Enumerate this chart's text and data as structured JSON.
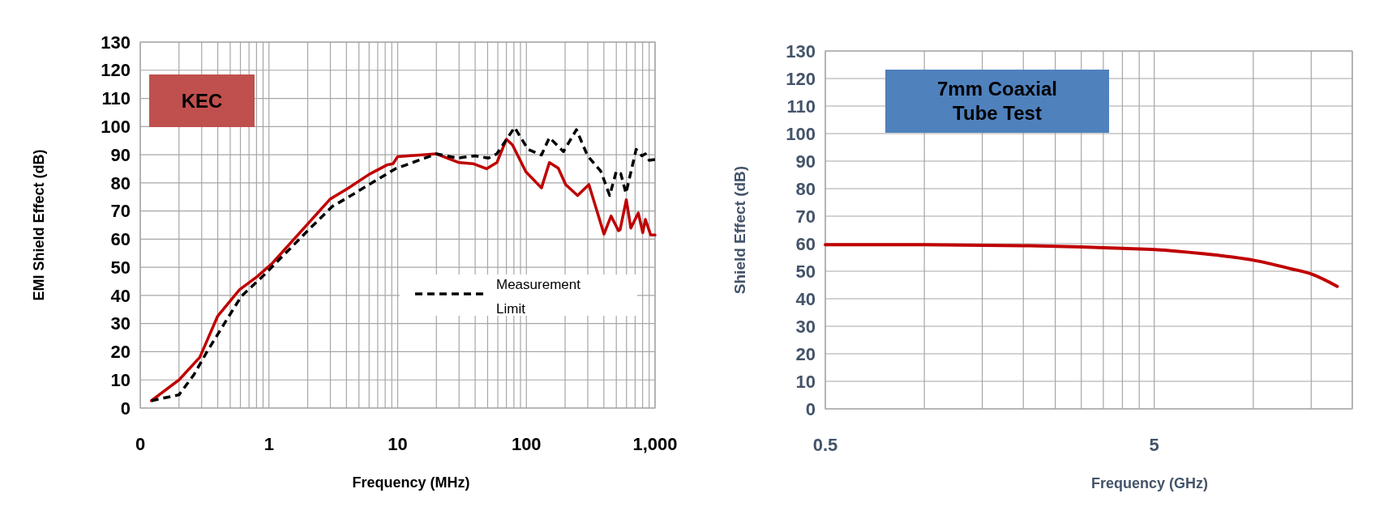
{
  "chart_data": [
    {
      "type": "line",
      "xlabel": "Frequency (MHz)",
      "ylabel": "EMI Shield Effect (dB)",
      "annotations": [
        "KEC"
      ],
      "log": "x",
      "grid": true,
      "legend": "bottom right",
      "xlim": [
        0.1,
        1000
      ],
      "ylim": [
        0,
        130
      ],
      "xticks": [
        {
          "value": 0.1,
          "label": "0"
        },
        {
          "value": 0.2,
          "label": null
        },
        {
          "value": 0.3,
          "label": null
        },
        {
          "value": 0.4,
          "label": null
        },
        {
          "value": 0.5,
          "label": null
        },
        {
          "value": 0.6,
          "label": null
        },
        {
          "value": 0.7,
          "label": null
        },
        {
          "value": 0.8,
          "label": null
        },
        {
          "value": 0.9,
          "label": null
        },
        1,
        {
          "value": 2,
          "label": null
        },
        {
          "value": 3,
          "label": null
        },
        {
          "value": 4,
          "label": null
        },
        {
          "value": 5,
          "label": null
        },
        {
          "value": 6,
          "label": null
        },
        {
          "value": 7,
          "label": null
        },
        {
          "value": 8,
          "label": null
        },
        {
          "value": 9,
          "label": null
        },
        10,
        {
          "value": 20,
          "label": null
        },
        {
          "value": 30,
          "label": null
        },
        {
          "value": 40,
          "label": null
        },
        {
          "value": 50,
          "label": null
        },
        {
          "value": 60,
          "label": null
        },
        {
          "value": 70,
          "label": null
        },
        {
          "value": 80,
          "label": null
        },
        {
          "value": 90,
          "label": null
        },
        100,
        {
          "value": 200,
          "label": null
        },
        {
          "value": 300,
          "label": null
        },
        {
          "value": 400,
          "label": null
        },
        {
          "value": 500,
          "label": null
        },
        {
          "value": 600,
          "label": null
        },
        {
          "value": 700,
          "label": null
        },
        {
          "value": 800,
          "label": null
        },
        {
          "value": 900,
          "label": null
        },
        {
          "value": 1000,
          "label": "1,000"
        }
      ],
      "yticks": [
        0,
        10,
        20,
        30,
        40,
        50,
        60,
        70,
        80,
        90,
        100,
        110,
        120,
        130
      ],
      "series": [
        {
          "color": "#c00000",
          "line_style": "solid",
          "x": [
            0.122,
            0.2,
            0.29,
            0.4,
            0.59,
            0.81,
            1.06,
            2,
            3,
            4.1,
            6,
            8.3,
            9.2,
            10,
            20,
            30,
            38.5,
            49,
            59,
            70,
            78,
            99,
            131,
            151,
            177,
            202,
            250,
            306,
            401,
            455,
            520,
            535,
            598,
            648,
            741,
            802,
            841,
            924,
            1000
          ],
          "values": [
            2.6,
            10,
            18,
            32.7,
            42,
            46.7,
            51.4,
            65.4,
            74.3,
            78,
            83,
            86.4,
            86.8,
            89.3,
            90.3,
            87.2,
            86.8,
            85,
            87.2,
            95.5,
            93.5,
            84,
            78.2,
            87.2,
            85.2,
            79.4,
            75.5,
            79.4,
            61.8,
            68.2,
            63,
            63.4,
            74,
            63.9,
            69.3,
            62.3,
            67,
            61.5,
            61.5
          ]
        },
        {
          "name": "Measurement Limit",
          "color": "#000000",
          "line_style": "dashed",
          "x": [
            0.122,
            0.2,
            0.26,
            0.33,
            0.45,
            0.61,
            0.89,
            2,
            3.1,
            4.1,
            6,
            9.6,
            20,
            29,
            40,
            50.7,
            59,
            81,
            103,
            131,
            151,
            194,
            245,
            299,
            379,
            444,
            500,
            541,
            594,
            713,
            789,
            841,
            901,
            1000
          ],
          "values": [
            2.6,
            4.7,
            11.7,
            20,
            30,
            39.7,
            46.7,
            63,
            71.6,
            74.8,
            79.4,
            85,
            90.3,
            88.8,
            89.6,
            88.8,
            90.3,
            99.7,
            91.9,
            89.9,
            96.1,
            91.1,
            98.9,
            89.6,
            84.1,
            75.5,
            84.1,
            83.3,
            76.3,
            91.9,
            89.6,
            90.3,
            88,
            88.3
          ]
        }
      ]
    },
    {
      "type": "line",
      "xlabel": "Frequency (GHz)",
      "ylabel": "Shield Effect (dB)",
      "annotations": [
        "7mm Coaxial Tube Test"
      ],
      "log": "x",
      "grid": true,
      "xlim": [
        0.5,
        20
      ],
      "ylim": [
        0,
        130
      ],
      "xticks": [
        0.5,
        {
          "value": 1,
          "label": null
        },
        {
          "value": 1.5,
          "label": null
        },
        {
          "value": 2,
          "label": null
        },
        {
          "value": 2.5,
          "label": null
        },
        {
          "value": 3,
          "label": null
        },
        {
          "value": 3.5,
          "label": null
        },
        {
          "value": 4,
          "label": null
        },
        {
          "value": 4.5,
          "label": null
        },
        5,
        {
          "value": 10,
          "label": null
        },
        {
          "value": 15,
          "label": null
        },
        {
          "value": 20,
          "label": null
        }
      ],
      "yticks": [
        0,
        10,
        20,
        30,
        40,
        50,
        60,
        70,
        80,
        90,
        100,
        110,
        120,
        130
      ],
      "series": [
        {
          "color": "#c00000",
          "line_style": "solid",
          "x": [
            0.5,
            1,
            2,
            3,
            4,
            5,
            7,
            10,
            13,
            15,
            18
          ],
          "values": [
            59.6,
            59.6,
            59.3,
            58.8,
            58.3,
            57.9,
            56.4,
            54,
            50.9,
            49,
            44.5
          ]
        }
      ]
    }
  ]
}
